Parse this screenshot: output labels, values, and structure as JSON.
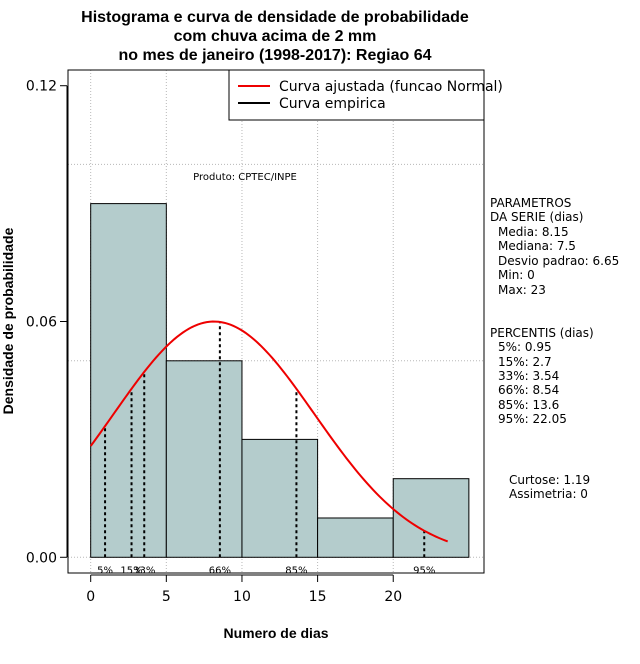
{
  "chart_data": {
    "type": "histogram",
    "title_lines": [
      "Histograma e curva de densidade de probabilidade",
      "com chuva acima de 2 mm",
      "no mes de janeiro (1998-2017): Regiao 64"
    ],
    "xlabel": "Numero de dias",
    "ylabel": "Densidade de probabilidade",
    "xlim": [
      -1.5,
      26
    ],
    "ylim": [
      -0.004,
      0.124
    ],
    "x_ticks": [
      {
        "value": 0,
        "label": "0"
      },
      {
        "value": 5,
        "label": "5"
      },
      {
        "value": 10,
        "label": "10"
      },
      {
        "value": 15,
        "label": "15"
      },
      {
        "value": 20,
        "label": "20"
      }
    ],
    "y_ticks": [
      {
        "value": 0.0,
        "label": "0.00"
      },
      {
        "value": 0.06,
        "label": "0.06"
      },
      {
        "value": 0.12,
        "label": "0.12"
      }
    ],
    "grid_x": [
      0,
      5,
      10,
      15,
      20
    ],
    "grid_y": [
      0.0,
      0.05,
      0.1
    ],
    "bins": [
      {
        "start": 0,
        "end": 5,
        "density": 0.09
      },
      {
        "start": 5,
        "end": 10,
        "density": 0.05
      },
      {
        "start": 10,
        "end": 15,
        "density": 0.03
      },
      {
        "start": 15,
        "end": 20,
        "density": 0.01
      },
      {
        "start": 20,
        "end": 25,
        "density": 0.02
      }
    ],
    "normal_curve": {
      "mean": 8.15,
      "sd": 6.65,
      "x_from": 0,
      "x_to": 23.6
    },
    "percentile_markers": [
      {
        "label": "5%",
        "value": 0.95
      },
      {
        "label": "15%",
        "value": 2.7
      },
      {
        "label": "33%",
        "value": 3.54
      },
      {
        "label": "66%",
        "value": 8.54
      },
      {
        "label": "85%",
        "value": 13.6
      },
      {
        "label": "95%",
        "value": 22.05
      }
    ],
    "legend": [
      {
        "label": "Curva ajustada (funcao Normal)",
        "color": "#ee0000"
      },
      {
        "label": "Curva empirica",
        "color": "#000000"
      }
    ],
    "legend_position": "top-right",
    "product_label": "Produto: CPTEC/INPE"
  },
  "parameters": {
    "heading": [
      "PARAMETROS",
      "DA SERIE (dias)"
    ],
    "lines": [
      "Media: 8.15",
      "Mediana: 7.5",
      "Desvio padrao: 6.65",
      "Min: 0",
      "Max: 23"
    ]
  },
  "percentiles": {
    "heading": "PERCENTIS (dias)",
    "lines": [
      "5%: 0.95",
      "15%: 2.7",
      "33%: 3.54",
      "66%: 8.54",
      "85%: 13.6",
      "95%: 22.05"
    ]
  },
  "stats": {
    "lines": [
      "Curtose: 1.19",
      "Assimetria: 0"
    ]
  },
  "colors": {
    "bar_fill": "#b4cccc",
    "curve": "#ee0000",
    "grid": "#b8b8b8"
  }
}
